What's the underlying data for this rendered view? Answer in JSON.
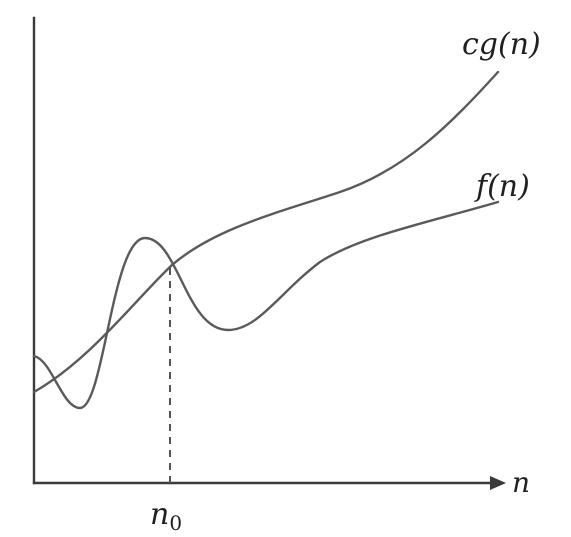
{
  "diagram": {
    "upper_curve_label": "cg(n)",
    "lower_curve_label": "f(n)",
    "x_axis_label": "n",
    "threshold_label_main": "n",
    "threshold_label_subscript": "0"
  }
}
